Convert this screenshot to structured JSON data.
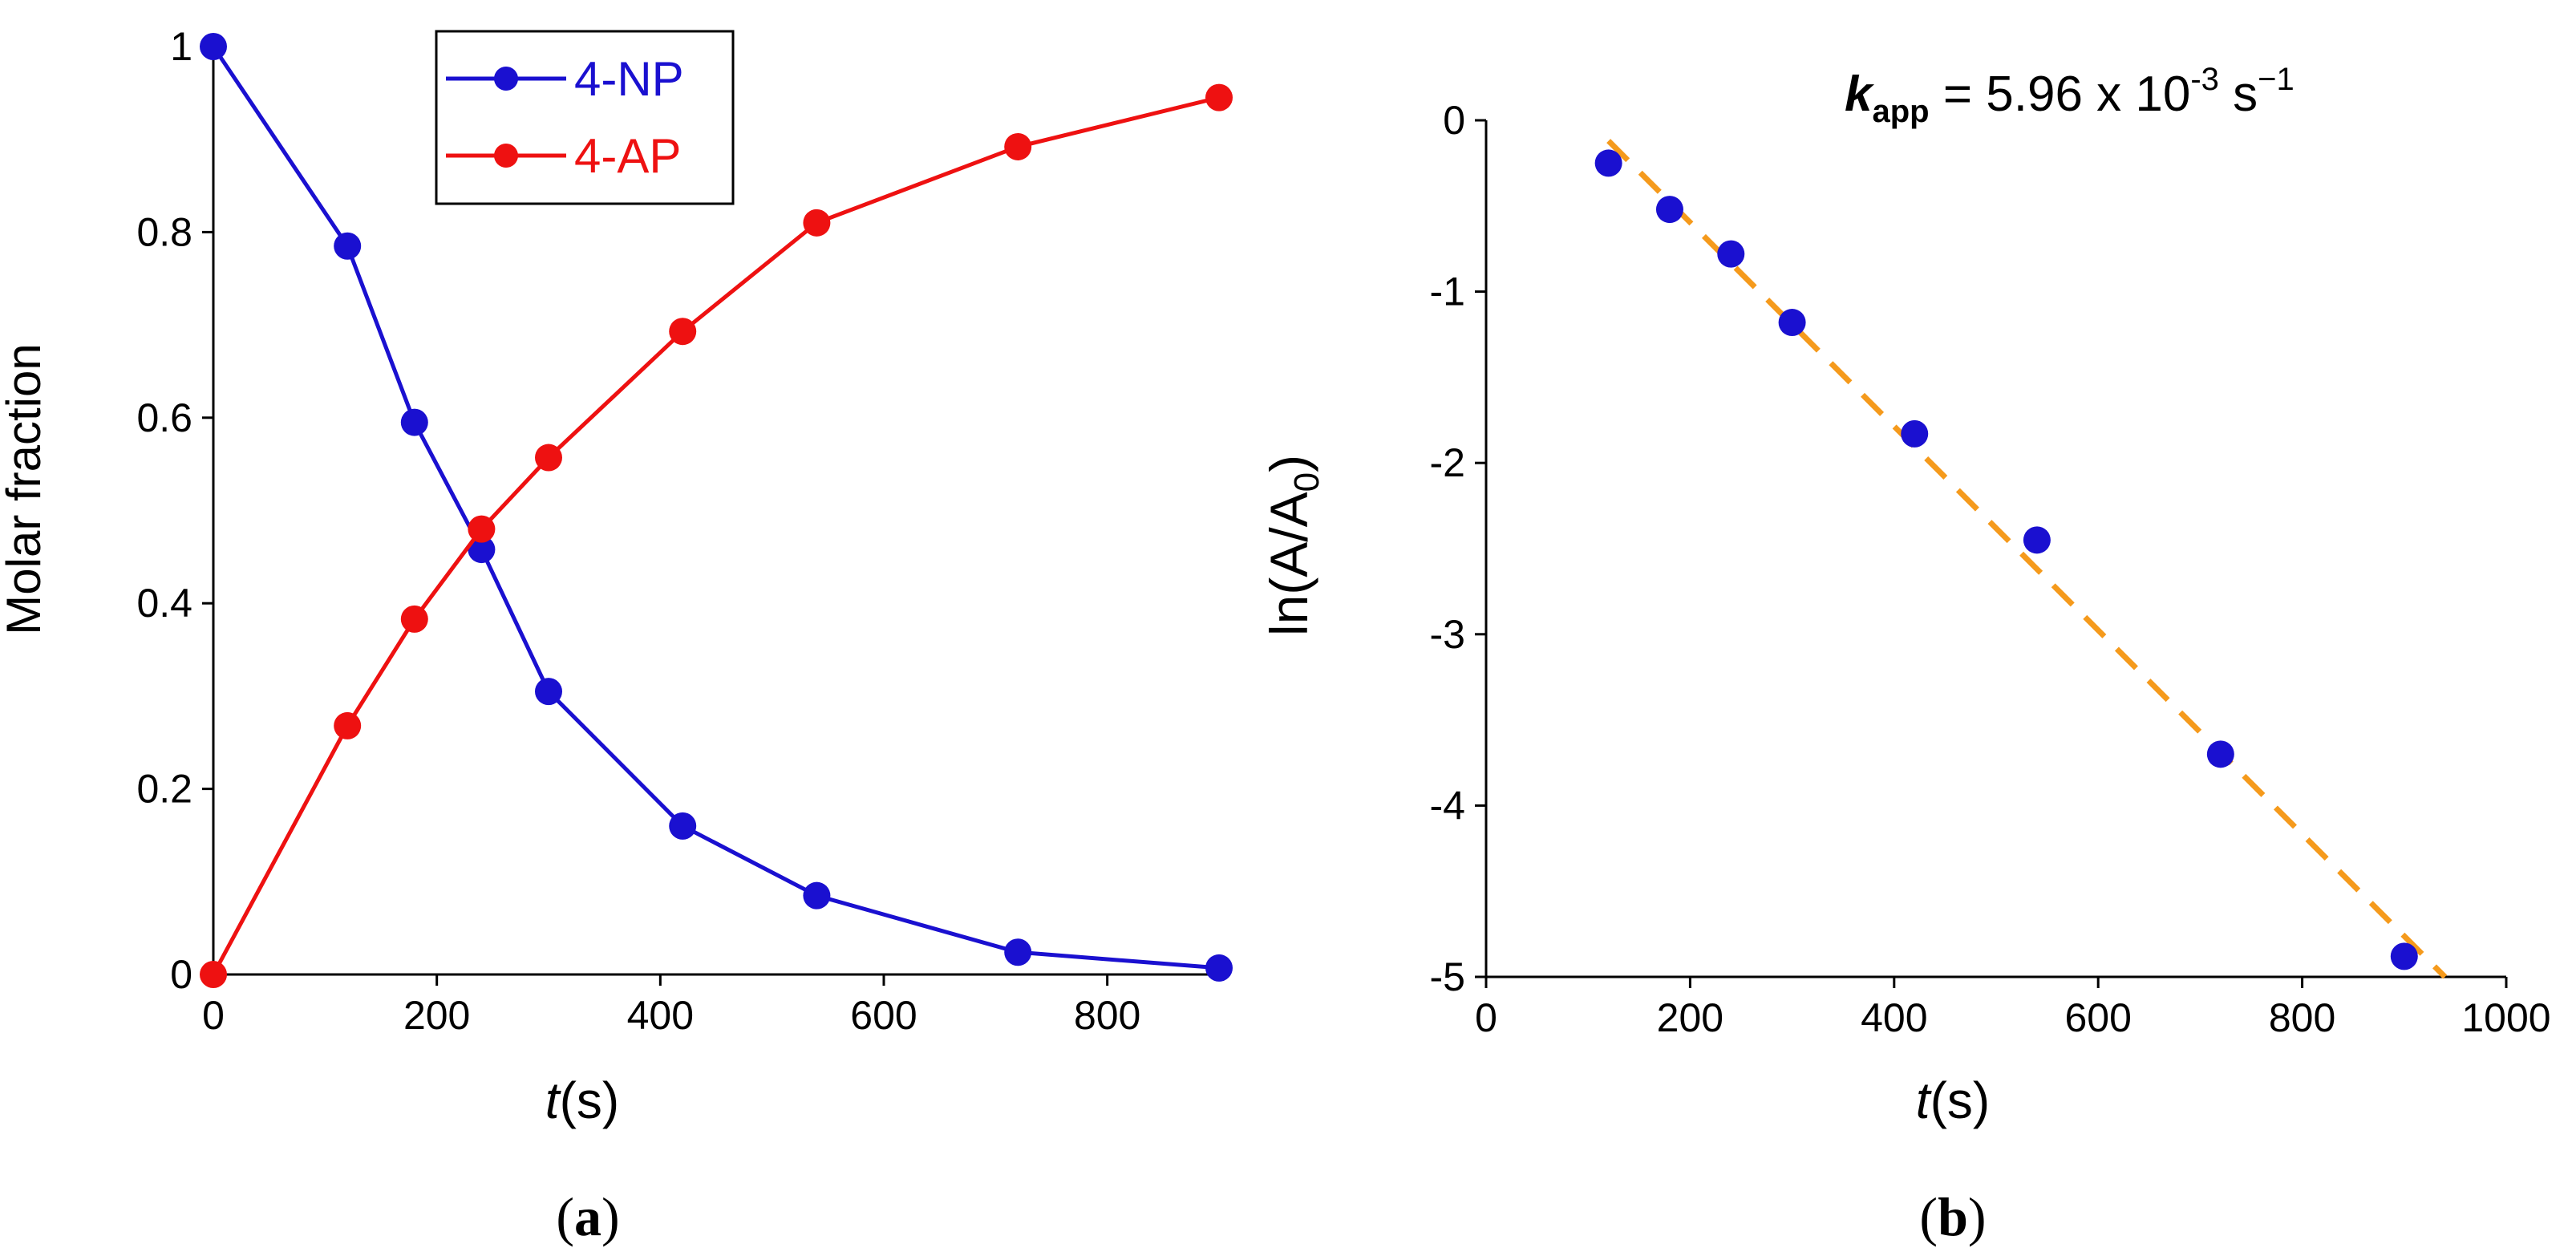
{
  "chart_data": [
    {
      "id": "a",
      "type": "line",
      "panel_label": "a",
      "xlabel": {
        "italic": "t",
        "rest": "(s)"
      },
      "ylabel": "Molar fraction",
      "xlim": [
        0,
        900
      ],
      "ylim": [
        0,
        1
      ],
      "x_ticks": [
        0,
        200,
        400,
        600,
        800
      ],
      "x_tick_labels": [
        "0",
        "200",
        "400",
        "600",
        "800"
      ],
      "y_ticks": [
        0,
        0.2,
        0.4,
        0.6,
        0.8,
        1
      ],
      "y_tick_labels": [
        "0",
        "0.2",
        "0.4",
        "0.6",
        "0.8",
        "1"
      ],
      "grid": false,
      "legend_position": "top-center",
      "series": [
        {
          "name": "4-NP",
          "color": "#1a10d0",
          "x": [
            0,
            120,
            180,
            240,
            300,
            420,
            540,
            720,
            900
          ],
          "y": [
            1.0,
            0.785,
            0.595,
            0.458,
            0.305,
            0.16,
            0.085,
            0.024,
            0.007
          ]
        },
        {
          "name": "4-AP",
          "color": "#ee1111",
          "x": [
            0,
            120,
            180,
            240,
            300,
            420,
            540,
            720,
            900
          ],
          "y": [
            0.0,
            0.268,
            0.383,
            0.48,
            0.557,
            0.693,
            0.81,
            0.892,
            0.945
          ]
        }
      ]
    },
    {
      "id": "b",
      "type": "scatter",
      "panel_label": "b",
      "xlabel": {
        "italic": "t",
        "rest": "(s)"
      },
      "ylabel": {
        "main": "ln(A/A",
        "sub": "0",
        "end": ")"
      },
      "xlim": [
        0,
        1000
      ],
      "ylim": [
        -5,
        0
      ],
      "x_ticks": [
        0,
        200,
        400,
        600,
        800,
        1000
      ],
      "x_tick_labels": [
        "0",
        "200",
        "400",
        "600",
        "800",
        "1000"
      ],
      "y_ticks": [
        0,
        -1,
        -2,
        -3,
        -4,
        -5
      ],
      "y_tick_labels": [
        "0",
        "-1",
        "-2",
        "-3",
        "-4",
        "-5"
      ],
      "grid": false,
      "annotation": {
        "k": "k",
        "k_sub": "app",
        "eq": " = 5.96 x 10",
        "exp": "-3",
        "unit": " s",
        "unit_exp": "−1"
      },
      "series": [
        {
          "name": "data",
          "color": "#1a10d0",
          "x": [
            120,
            180,
            240,
            300,
            420,
            540,
            720,
            900
          ],
          "y": [
            -0.25,
            -0.52,
            -0.78,
            -1.18,
            -1.83,
            -2.45,
            -3.7,
            -4.88
          ]
        }
      ],
      "fit": {
        "color": "#f59a1c",
        "x": [
          120,
          940
        ],
        "y": [
          -0.12,
          -5.0
        ]
      }
    }
  ]
}
